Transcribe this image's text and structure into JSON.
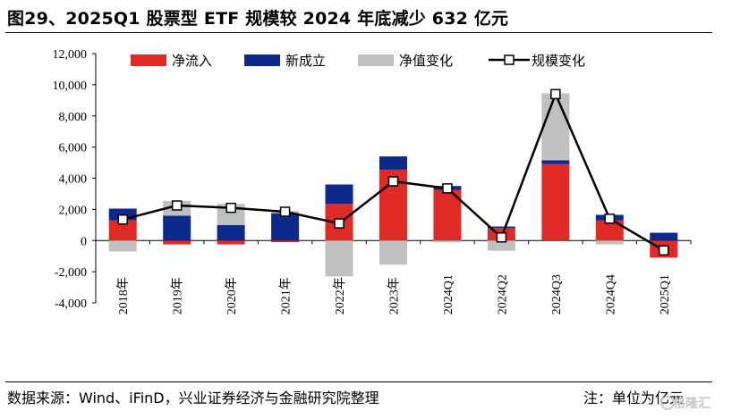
{
  "title": "图29、2025Q1 股票型 ETF 规模较 2024 年底减少 632 亿元",
  "source": "数据来源：Wind、iFinD，兴业证券经济与金融研究院整理",
  "note": "注：单位为亿元",
  "watermark": "格隆汇",
  "colors": {
    "net_inflow": "#e02a26",
    "new_listing": "#0c2a8c",
    "nav_change": "#c0c0c0",
    "scale_change": "#000000"
  },
  "chart_data": {
    "type": "bar",
    "stacked": true,
    "categories": [
      "2018年",
      "2019年",
      "2020年",
      "2021年",
      "2022年",
      "2023年",
      "2024Q1",
      "2024Q2",
      "2024Q3",
      "2024Q4",
      "2025Q1"
    ],
    "ylim": [
      -4000,
      12000
    ],
    "yticks": [
      -4000,
      -2000,
      0,
      2000,
      4000,
      6000,
      8000,
      10000,
      12000
    ],
    "ytick_labels": [
      "-4,000",
      "-2,000",
      "0",
      "2,000",
      "4,000",
      "6,000",
      "8,000",
      "10,000",
      "12,000"
    ],
    "series": [
      {
        "name": "净流入",
        "kind": "bar",
        "color": "#e02a26",
        "values": [
          1300,
          -250,
          -250,
          -100,
          2350,
          4550,
          3250,
          800,
          4900,
          1300,
          -1100
        ]
      },
      {
        "name": "新成立",
        "kind": "bar",
        "color": "#0c2a8c",
        "values": [
          750,
          1600,
          1000,
          1750,
          1250,
          850,
          250,
          100,
          250,
          350,
          500
        ]
      },
      {
        "name": "净值变化",
        "kind": "bar",
        "color": "#c0c0c0",
        "values": [
          -700,
          950,
          1350,
          150,
          -2300,
          -1550,
          -100,
          -650,
          4300,
          -250,
          0
        ]
      },
      {
        "name": "规模变化",
        "kind": "line",
        "color": "#000000",
        "values": [
          1350,
          2250,
          2100,
          1850,
          1100,
          3800,
          3350,
          200,
          9400,
          1400,
          -632
        ]
      }
    ],
    "legend": [
      "净流入",
      "新成立",
      "净值变化",
      "规模变化"
    ],
    "legend_position": "top"
  }
}
